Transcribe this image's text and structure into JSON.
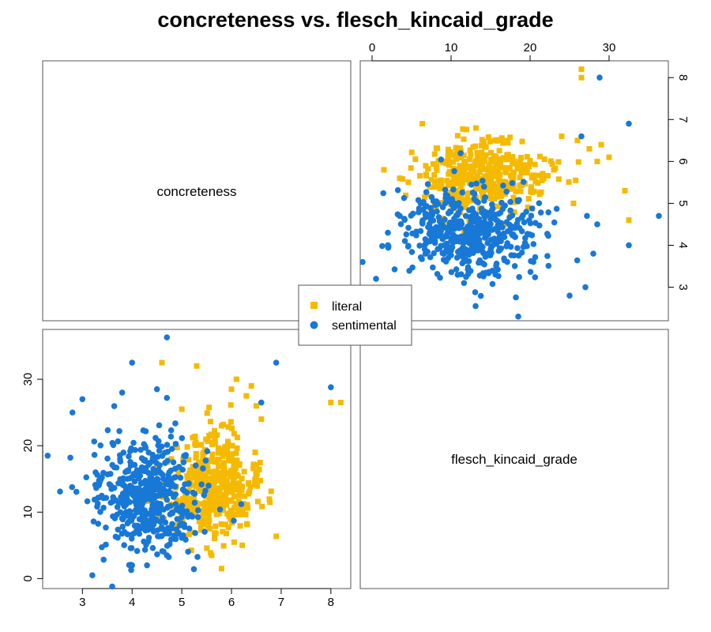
{
  "chart_data": {
    "type": "scatter",
    "layout": "scatterplot-matrix",
    "title": "concreteness vs. flesch_kincaid_grade",
    "variables": [
      "concreteness",
      "flesch_kincaid_grade"
    ],
    "axes": {
      "concreteness": {
        "range": [
          2.2,
          8.4
        ],
        "ticks": [
          3,
          4,
          5,
          6,
          7,
          8
        ]
      },
      "flesch_kincaid_grade": {
        "range": [
          -1.5,
          37.5
        ],
        "ticks": [
          0,
          10,
          20,
          30
        ]
      }
    },
    "legend_position": "center",
    "series": [
      {
        "name": "literal",
        "color": "#F5BA00",
        "marker": "square",
        "summary": {
          "concreteness_center": 5.6,
          "concreteness_sd": 0.45,
          "fk_center": 14.0,
          "fk_sd": 4.0,
          "n_points": 420
        },
        "extra_points": [
          {
            "concreteness": 8.0,
            "fk": 26.5
          },
          {
            "concreteness": 8.2,
            "fk": 26.5
          },
          {
            "concreteness": 6.1,
            "fk": 30.0
          },
          {
            "concreteness": 6.0,
            "fk": 28.5
          },
          {
            "concreteness": 6.4,
            "fk": 29.0
          },
          {
            "concreteness": 6.3,
            "fk": 27.5
          },
          {
            "concreteness": 5.3,
            "fk": 32.0
          },
          {
            "concreteness": 4.6,
            "fk": 32.5
          },
          {
            "concreteness": 6.6,
            "fk": 24.0
          },
          {
            "concreteness": 6.5,
            "fk": 26.0
          },
          {
            "concreteness": 5.8,
            "fk": 1.5
          },
          {
            "concreteness": 5.6,
            "fk": 3.5
          },
          {
            "concreteness": 5.8,
            "fk": 23.0
          },
          {
            "concreteness": 5.0,
            "fk": 25.5
          }
        ]
      },
      {
        "name": "sentimental",
        "color": "#1878D6",
        "marker": "circle",
        "summary": {
          "concreteness_center": 4.3,
          "concreteness_sd": 0.5,
          "fk_center": 12.5,
          "fk_sd": 4.5,
          "n_points": 480
        },
        "extra_points": [
          {
            "concreteness": 4.7,
            "fk": 36.3
          },
          {
            "concreteness": 6.9,
            "fk": 32.5
          },
          {
            "concreteness": 4.0,
            "fk": 32.5
          },
          {
            "concreteness": 8.0,
            "fk": 28.8
          },
          {
            "concreteness": 2.3,
            "fk": 18.5
          },
          {
            "concreteness": 3.2,
            "fk": 0.5
          },
          {
            "concreteness": 3.6,
            "fk": -1.2
          },
          {
            "concreteness": 4.0,
            "fk": 2.0
          },
          {
            "concreteness": 4.3,
            "fk": 2.0
          },
          {
            "concreteness": 2.8,
            "fk": 25.0
          },
          {
            "concreteness": 3.0,
            "fk": 27.0
          },
          {
            "concreteness": 4.7,
            "fk": 27.2
          },
          {
            "concreteness": 4.5,
            "fk": 28.5
          },
          {
            "concreteness": 3.8,
            "fk": 28.0
          },
          {
            "concreteness": 6.6,
            "fk": 26.5
          },
          {
            "concreteness": 4.7,
            "fk": 3.5
          }
        ]
      }
    ]
  }
}
